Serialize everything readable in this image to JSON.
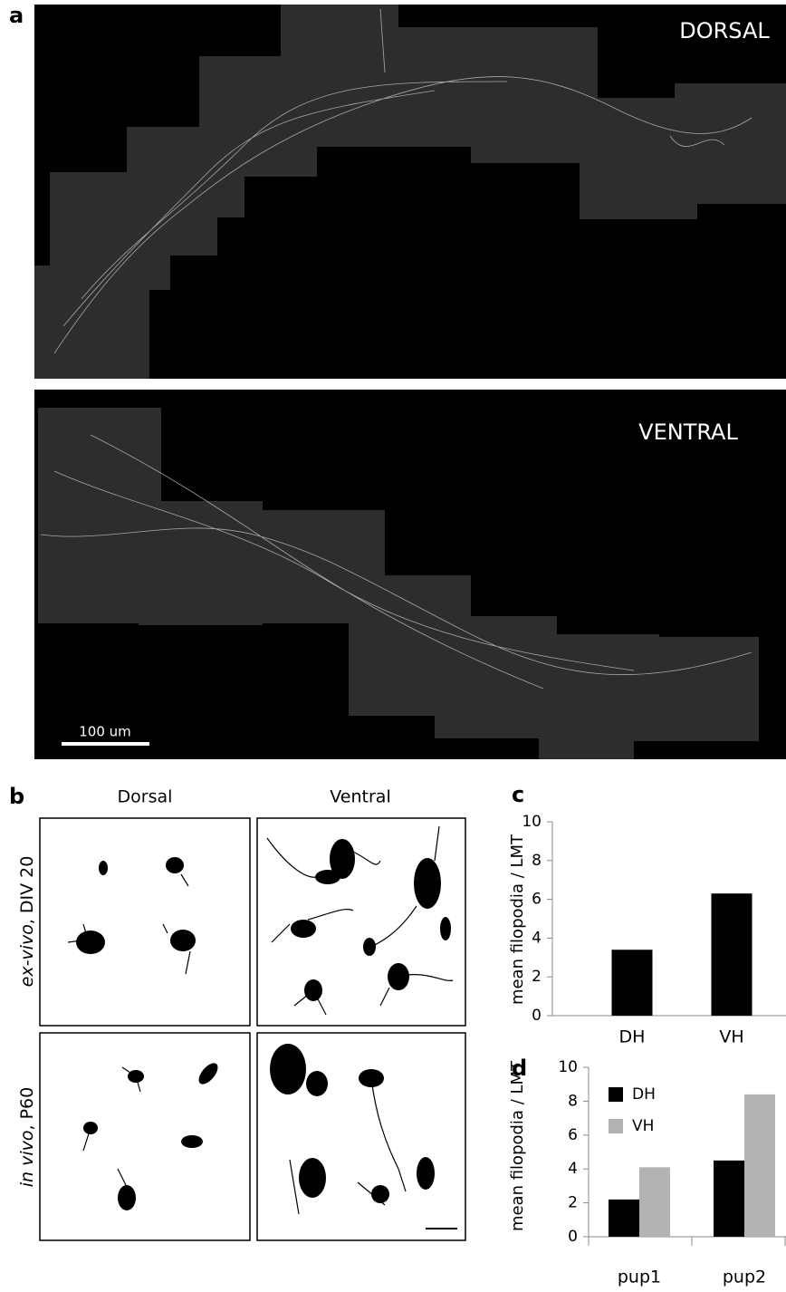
{
  "panels": {
    "a": {
      "label": "a",
      "top_image_label": "DORSAL",
      "bottom_image_label": "VENTRAL",
      "scale_bar": "100 um"
    },
    "b": {
      "label": "b",
      "columns": [
        "Dorsal",
        "Ventral"
      ],
      "rows": [
        {
          "italic": "ex-vivo",
          "rest": ", DIV 20"
        },
        {
          "italic": "in vivo",
          "rest": ", P60"
        }
      ]
    }
  },
  "chart_data": [
    {
      "type": "bar",
      "panel_label": "c",
      "y_label": "mean filopodia / LMT",
      "categories": [
        "DH",
        "VH"
      ],
      "values": [
        3.4,
        6.3
      ],
      "color": "#000000",
      "ylim": [
        0,
        10
      ],
      "yticks": [
        0,
        2,
        4,
        6,
        8,
        10
      ]
    },
    {
      "type": "grouped-bar",
      "panel_label": "d",
      "y_label": "mean filopodia / LMT",
      "categories": [
        "pup1",
        "pup2"
      ],
      "series": [
        {
          "name": "DH",
          "color": "#000000",
          "values": [
            2.2,
            4.5
          ]
        },
        {
          "name": "VH",
          "color": "#b3b3b3",
          "values": [
            4.1,
            8.4
          ]
        }
      ],
      "legend": "upper left",
      "ylim": [
        0,
        10
      ],
      "yticks": [
        0,
        2,
        4,
        6,
        8,
        10
      ]
    }
  ]
}
